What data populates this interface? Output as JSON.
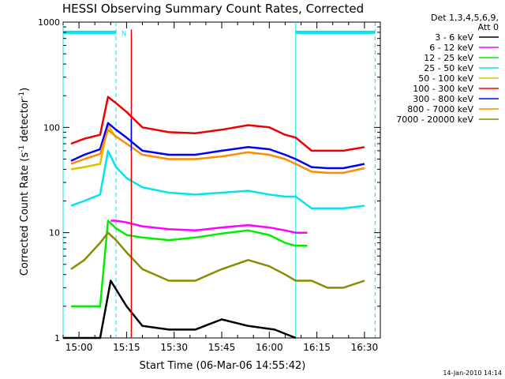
{
  "chart_data": {
    "type": "line",
    "title": "HESSI Observing Summary Count Rates, Corrected",
    "xlabel": "Start Time (06-Mar-06 14:55:42)",
    "ylabel_main": "Corrected Count Rate (s",
    "ylabel_sup1": "-1",
    "ylabel_mid": " detector",
    "ylabel_sup2": "-1",
    "ylabel_end": ")",
    "yscale": "log",
    "ylim": [
      1,
      1000
    ],
    "y_ticks": [
      1,
      10,
      100,
      1000
    ],
    "y_tick_labels": [
      "1",
      "10",
      "100",
      "1000"
    ],
    "x_tick_labels": [
      "15:00",
      "15:15",
      "15:30",
      "15:45",
      "16:00",
      "16:15",
      "16:30"
    ],
    "x_ticks_min": [
      300,
      1200,
      2100,
      3000,
      3900,
      4800,
      5700
    ],
    "xlim_min": [
      0,
      6000
    ],
    "legend_header": [
      "Det 1,3,4,5,6,9,",
      "Att 0"
    ],
    "legend_placement": "right",
    "annotation_marker": "N",
    "timestamp": "14-Jan-2010 14:14",
    "bars": {
      "spans_min": [
        [
          0,
          1000
        ],
        [
          4400,
          5900
        ]
      ],
      "level": 800,
      "color": "#00e5ee",
      "solid_lines_min": [
        0,
        4400
      ],
      "dashed_lines_min": [
        1000,
        5900
      ]
    },
    "series": [
      {
        "name": "3 - 6 keV",
        "color": "#000000",
        "x": [
          0,
          700,
          900,
          1200,
          1500,
          2000,
          2500,
          3000,
          3500,
          4000,
          4400
        ],
        "y": [
          1,
          1,
          3.5,
          2,
          1.3,
          1.2,
          1.2,
          1.5,
          1.3,
          1.2,
          1
        ]
      },
      {
        "name": "6 - 12 keV",
        "color": "#ff00ff",
        "x": [
          900,
          1000,
          1200,
          1500,
          2000,
          2500,
          3000,
          3500,
          3900,
          4200,
          4400,
          4620
        ],
        "y": [
          13,
          13,
          12.5,
          11.5,
          10.8,
          10.5,
          11.2,
          11.8,
          11.2,
          10.5,
          10,
          10
        ]
      },
      {
        "name": "12 - 25 keV",
        "color": "#00ee00",
        "x": [
          150,
          700,
          850,
          1000,
          1200,
          1500,
          2000,
          2500,
          3000,
          3500,
          3900,
          4200,
          4400,
          4620
        ],
        "y": [
          2,
          2,
          13,
          11,
          9.5,
          9,
          8.5,
          9,
          9.8,
          10.5,
          9.5,
          8,
          7.5,
          7.5
        ]
      },
      {
        "name": "25 - 50 keV",
        "color": "#00e5ee",
        "x": [
          150,
          400,
          700,
          850,
          1000,
          1200,
          1500,
          2000,
          2500,
          3000,
          3500,
          3900,
          4200,
          4400,
          4700,
          5000,
          5300,
          5700
        ],
        "y": [
          18,
          20,
          23,
          60,
          42,
          33,
          27,
          24,
          23,
          24,
          25,
          23,
          22,
          22,
          17,
          17,
          17,
          18
        ]
      },
      {
        "name": "50 - 100 keV",
        "color": "#e0c000",
        "x": [
          150,
          400,
          700,
          850,
          1000
        ],
        "y": [
          40,
          42,
          45,
          105,
          80
        ]
      },
      {
        "name": "100 - 300 keV",
        "color": "#ee0000",
        "x": [
          150,
          400,
          700,
          850,
          1000,
          1200,
          1500,
          2000,
          2500,
          3000,
          3500,
          3900,
          4200,
          4400,
          4700,
          5000,
          5300,
          5700
        ],
        "y": [
          70,
          78,
          85,
          195,
          170,
          140,
          100,
          90,
          88,
          95,
          105,
          100,
          85,
          80,
          60,
          60,
          60,
          65
        ]
      },
      {
        "name": "300 - 800 keV",
        "color": "#0000ff",
        "x": [
          150,
          400,
          700,
          850,
          1000,
          1200,
          1500,
          2000,
          2500,
          3000,
          3500,
          3900,
          4200,
          4400,
          4700,
          5000,
          5300,
          5700
        ],
        "y": [
          48,
          55,
          62,
          110,
          95,
          80,
          60,
          55,
          55,
          60,
          65,
          62,
          55,
          50,
          42,
          41,
          41,
          45
        ]
      },
      {
        "name": "800 - 7000 keV",
        "color": "#ff8c00",
        "x": [
          150,
          400,
          700,
          850,
          1000,
          1200,
          1500,
          2000,
          2500,
          3000,
          3500,
          3900,
          4200,
          4400,
          4700,
          5000,
          5300,
          5700
        ],
        "y": [
          45,
          50,
          56,
          95,
          82,
          70,
          55,
          50,
          50,
          53,
          58,
          55,
          50,
          45,
          38,
          37,
          37,
          41
        ]
      },
      {
        "name": "7000 - 20000 keV",
        "color": "#8b8b00",
        "x": [
          150,
          400,
          700,
          850,
          1000,
          1200,
          1500,
          2000,
          2500,
          3000,
          3500,
          3900,
          4200,
          4400,
          4700,
          5000,
          5300,
          5700
        ],
        "y": [
          4.5,
          5.5,
          8,
          10,
          8.5,
          6.5,
          4.5,
          3.5,
          3.5,
          4.5,
          5.5,
          4.8,
          4,
          3.5,
          3.5,
          3,
          3,
          3.5
        ]
      }
    ],
    "spikes": [
      {
        "x_min": 1290,
        "y_from": 1,
        "y_to": 850,
        "color": "#ee0000"
      },
      {
        "x_min": 1290,
        "y_from": 60,
        "y_to": 120,
        "color": "#0000ff"
      }
    ],
    "grid": false
  }
}
